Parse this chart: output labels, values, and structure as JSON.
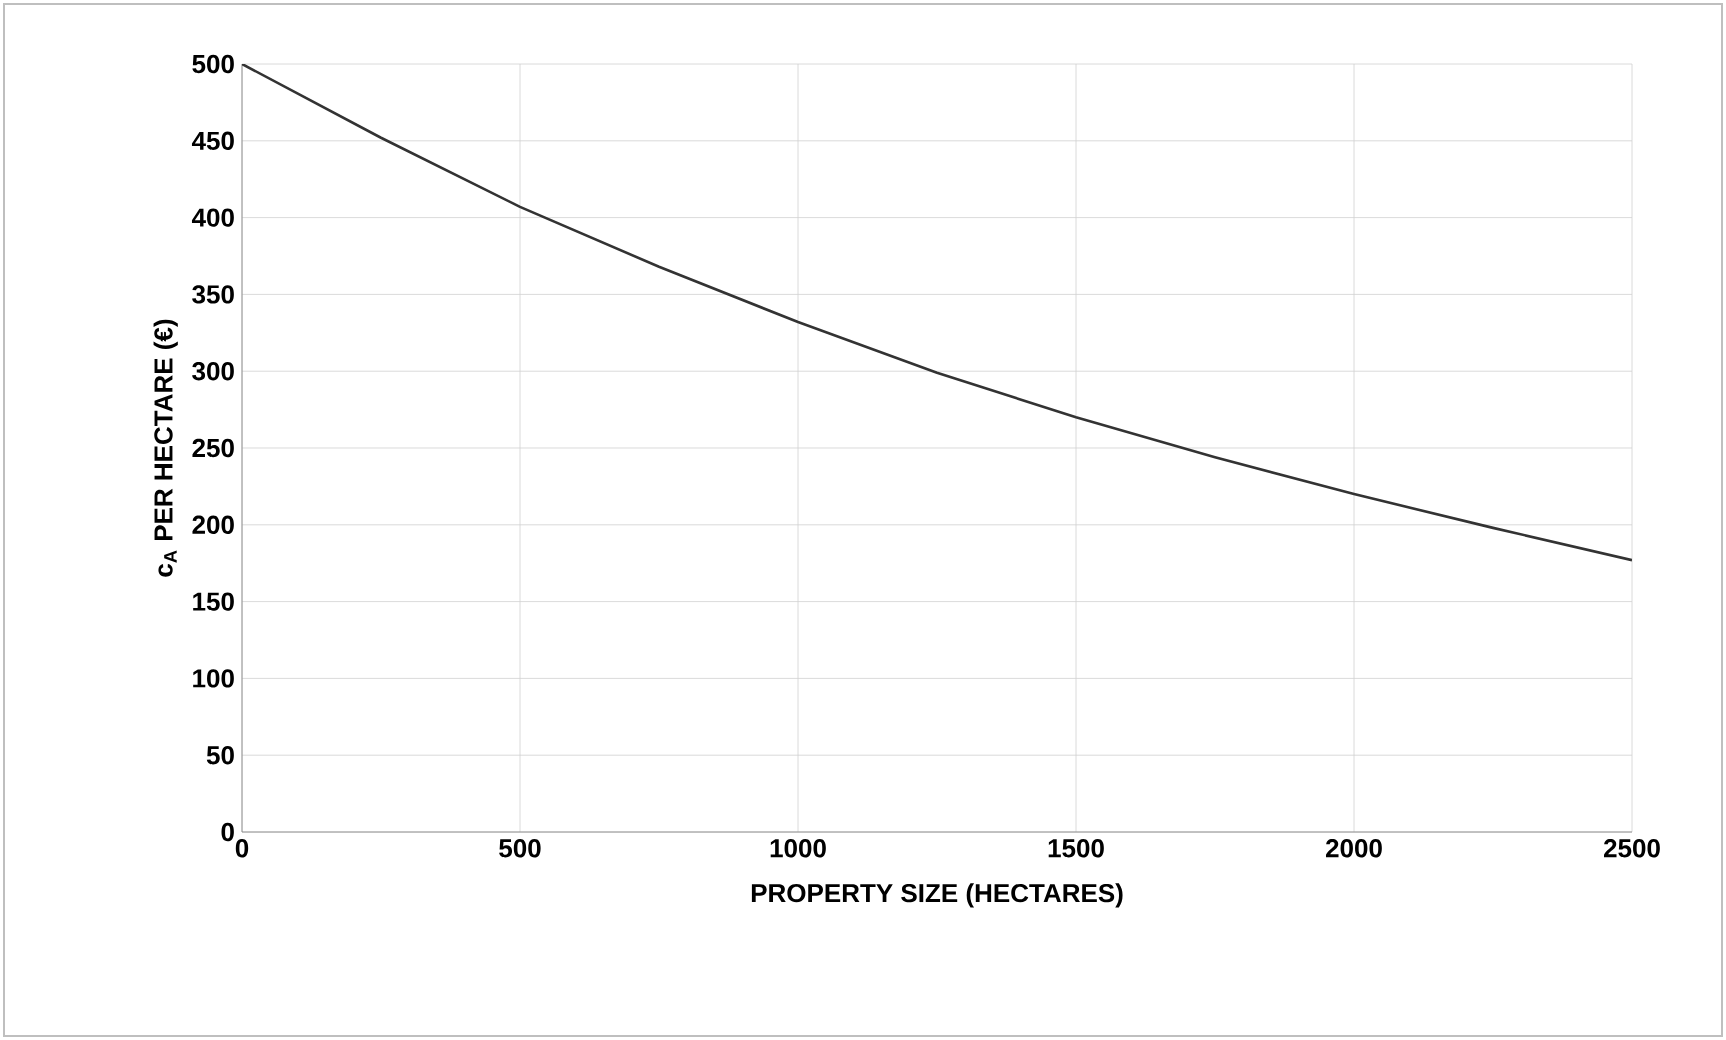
{
  "chart_data": {
    "type": "line",
    "xlabel": "PROPERTY SIZE (HECTARES)",
    "ylabel": "c$_{A}$ PER HECTARE (€)",
    "x": [
      0,
      250,
      500,
      750,
      1000,
      1250,
      1500,
      1750,
      2000,
      2250,
      2500
    ],
    "series": [
      {
        "color": "#333333",
        "values": [
          500,
          452,
          407,
          368,
          332,
          299,
          270,
          244,
          220,
          198,
          177
        ]
      }
    ],
    "xlim": [
      0,
      2500
    ],
    "xticks": [
      0,
      500,
      1000,
      1500,
      2000,
      2500
    ],
    "ylim": [
      0,
      500
    ],
    "yticks": [
      0,
      50,
      100,
      150,
      200,
      250,
      300,
      350,
      400,
      450,
      500
    ],
    "grid": true,
    "marker": "none",
    "line_style": "solid"
  }
}
